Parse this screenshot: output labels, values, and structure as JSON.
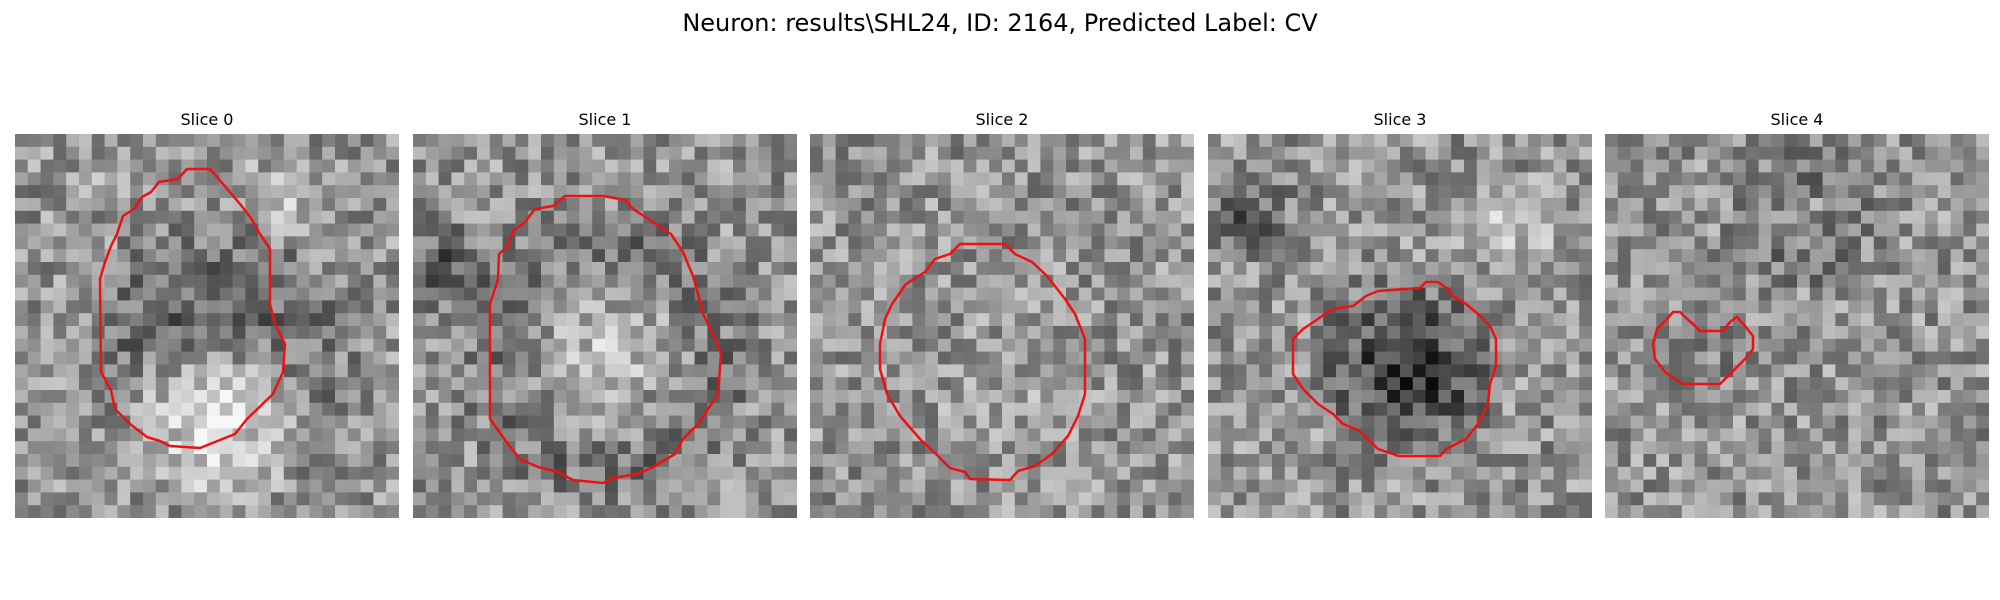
{
  "figure": {
    "title": "Neuron: results\\SHL24, ID: 2164, Predicted Label: CV"
  },
  "colors": {
    "contour": "#ee1111",
    "background": "#ffffff"
  },
  "panels": [
    {
      "title": "Slice 0"
    },
    {
      "title": "Slice 1"
    },
    {
      "title": "Slice 2"
    },
    {
      "title": "Slice 3"
    },
    {
      "title": "Slice 4"
    }
  ]
}
